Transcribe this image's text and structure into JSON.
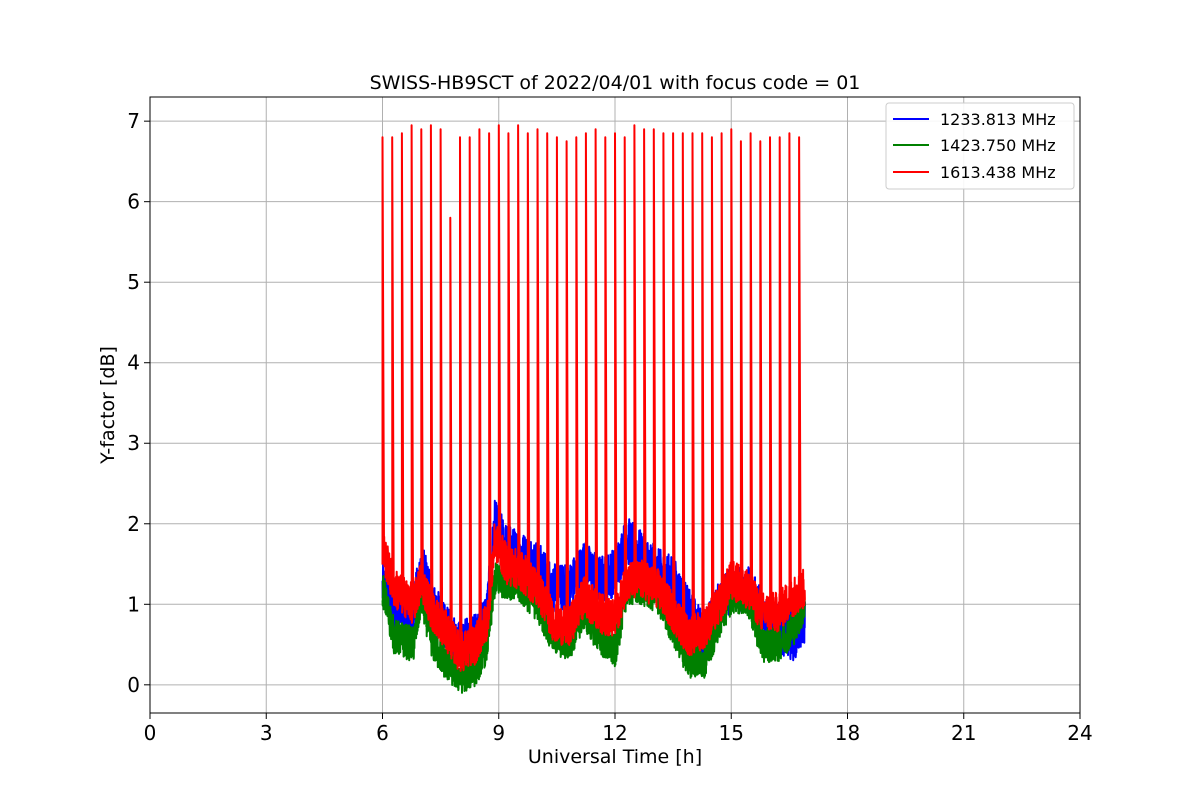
{
  "chart_data": {
    "type": "line",
    "title": "SWISS-HB9SCT of 2022/04/01 with focus code = 01",
    "xlabel": "Universal Time [h]",
    "ylabel": "Y-factor [dB]",
    "xlim": [
      0,
      24
    ],
    "ylim": [
      -0.35,
      7.3
    ],
    "xticks": [
      0,
      3,
      6,
      9,
      12,
      15,
      18,
      21,
      24
    ],
    "yticks": [
      0,
      1,
      2,
      3,
      4,
      5,
      6,
      7
    ],
    "grid": true,
    "legend_position": "top-right",
    "series": [
      {
        "name": "1233.813 MHz",
        "color": "#0000ff",
        "baseline": [
          [
            6.0,
            1.2
          ],
          [
            6.3,
            1.0
          ],
          [
            6.8,
            0.9
          ],
          [
            7.0,
            1.5
          ],
          [
            7.3,
            1.0
          ],
          [
            7.6,
            0.7
          ],
          [
            8.0,
            0.5
          ],
          [
            8.4,
            0.6
          ],
          [
            8.7,
            0.9
          ],
          [
            8.9,
            2.0
          ],
          [
            9.2,
            1.7
          ],
          [
            9.6,
            1.6
          ],
          [
            10.0,
            1.5
          ],
          [
            10.4,
            1.2
          ],
          [
            10.8,
            1.2
          ],
          [
            11.2,
            1.5
          ],
          [
            11.6,
            1.3
          ],
          [
            12.0,
            1.4
          ],
          [
            12.3,
            1.8
          ],
          [
            12.7,
            1.6
          ],
          [
            13.1,
            1.4
          ],
          [
            13.5,
            1.3
          ],
          [
            13.9,
            0.9
          ],
          [
            14.3,
            0.6
          ],
          [
            14.7,
            1.0
          ],
          [
            15.0,
            1.2
          ],
          [
            15.4,
            1.2
          ],
          [
            15.8,
            0.9
          ],
          [
            16.2,
            0.7
          ],
          [
            16.6,
            0.6
          ],
          [
            16.9,
            0.8
          ]
        ],
        "noise_amplitude": 0.3
      },
      {
        "name": "1423.750 MHz",
        "color": "#008000",
        "baseline": [
          [
            6.0,
            1.2
          ],
          [
            6.3,
            0.6
          ],
          [
            6.8,
            0.5
          ],
          [
            7.0,
            1.1
          ],
          [
            7.3,
            0.5
          ],
          [
            7.6,
            0.3
          ],
          [
            8.0,
            0.1
          ],
          [
            8.4,
            0.2
          ],
          [
            8.7,
            0.5
          ],
          [
            8.9,
            1.3
          ],
          [
            9.2,
            1.3
          ],
          [
            9.6,
            1.2
          ],
          [
            10.0,
            1.0
          ],
          [
            10.4,
            0.6
          ],
          [
            10.8,
            0.5
          ],
          [
            11.2,
            0.9
          ],
          [
            11.6,
            0.6
          ],
          [
            12.0,
            0.4
          ],
          [
            12.3,
            1.2
          ],
          [
            12.7,
            1.2
          ],
          [
            13.1,
            1.1
          ],
          [
            13.5,
            0.7
          ],
          [
            13.9,
            0.3
          ],
          [
            14.3,
            0.3
          ],
          [
            14.7,
            0.8
          ],
          [
            15.0,
            1.1
          ],
          [
            15.4,
            1.1
          ],
          [
            15.8,
            0.5
          ],
          [
            16.2,
            0.5
          ],
          [
            16.6,
            0.7
          ],
          [
            16.9,
            1.0
          ]
        ],
        "noise_amplitude": 0.22
      },
      {
        "name": "1613.438 MHz",
        "color": "#ff0000",
        "baseline": [
          [
            6.0,
            1.7
          ],
          [
            6.3,
            1.2
          ],
          [
            6.8,
            1.0
          ],
          [
            7.0,
            1.3
          ],
          [
            7.3,
            0.9
          ],
          [
            7.6,
            0.7
          ],
          [
            8.0,
            0.4
          ],
          [
            8.4,
            0.5
          ],
          [
            8.7,
            0.8
          ],
          [
            8.9,
            1.8
          ],
          [
            9.2,
            1.5
          ],
          [
            9.6,
            1.4
          ],
          [
            10.0,
            1.2
          ],
          [
            10.4,
            0.8
          ],
          [
            10.8,
            0.7
          ],
          [
            11.2,
            1.1
          ],
          [
            11.6,
            0.9
          ],
          [
            12.0,
            0.8
          ],
          [
            12.3,
            1.3
          ],
          [
            12.7,
            1.3
          ],
          [
            13.1,
            1.2
          ],
          [
            13.5,
            0.9
          ],
          [
            13.9,
            0.6
          ],
          [
            14.3,
            0.7
          ],
          [
            14.7,
            1.0
          ],
          [
            15.0,
            1.3
          ],
          [
            15.4,
            1.2
          ],
          [
            15.8,
            0.9
          ],
          [
            16.2,
            0.9
          ],
          [
            16.6,
            1.1
          ],
          [
            16.9,
            1.2
          ]
        ],
        "noise_amplitude": 0.25,
        "spikes": [
          [
            6.0,
            6.8
          ],
          [
            6.25,
            6.8
          ],
          [
            6.5,
            6.85
          ],
          [
            6.75,
            6.95
          ],
          [
            7.0,
            6.9
          ],
          [
            7.25,
            6.95
          ],
          [
            7.5,
            6.9
          ],
          [
            7.75,
            5.8
          ],
          [
            8.0,
            6.8
          ],
          [
            8.25,
            6.8
          ],
          [
            8.5,
            6.9
          ],
          [
            8.75,
            6.85
          ],
          [
            9.0,
            6.95
          ],
          [
            9.25,
            6.85
          ],
          [
            9.5,
            6.95
          ],
          [
            9.75,
            6.85
          ],
          [
            10.0,
            6.9
          ],
          [
            10.25,
            6.85
          ],
          [
            10.5,
            6.8
          ],
          [
            10.75,
            6.75
          ],
          [
            11.0,
            6.8
          ],
          [
            11.25,
            6.85
          ],
          [
            11.5,
            6.9
          ],
          [
            11.75,
            6.8
          ],
          [
            12.0,
            6.85
          ],
          [
            12.25,
            6.8
          ],
          [
            12.5,
            6.95
          ],
          [
            12.75,
            6.9
          ],
          [
            13.0,
            6.9
          ],
          [
            13.25,
            6.85
          ],
          [
            13.5,
            6.85
          ],
          [
            13.75,
            6.85
          ],
          [
            14.0,
            6.85
          ],
          [
            14.25,
            6.85
          ],
          [
            14.5,
            6.8
          ],
          [
            14.75,
            6.85
          ],
          [
            15.0,
            6.9
          ],
          [
            15.25,
            6.75
          ],
          [
            15.5,
            6.85
          ],
          [
            15.75,
            6.75
          ],
          [
            16.0,
            6.8
          ],
          [
            16.25,
            6.8
          ],
          [
            16.5,
            6.85
          ],
          [
            16.75,
            6.8
          ]
        ]
      }
    ]
  }
}
